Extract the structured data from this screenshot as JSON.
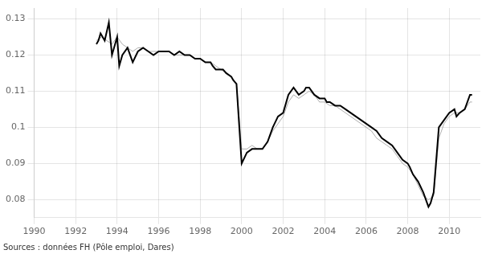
{
  "chart_data": {
    "type": "line",
    "annotations": [
      "Sources : données FH (Pôle emploi, Dares)"
    ],
    "xlim": [
      1990.0,
      2011.5
    ],
    "xticks": [
      1990,
      1992,
      1994,
      1996,
      1998,
      2000,
      2002,
      2004,
      2006,
      2008,
      2010
    ],
    "ylim": [
      0.075,
      0.133
    ],
    "yticks": [
      0.08,
      0.09,
      0.1,
      0.11,
      0.12,
      0.13
    ],
    "grid": true,
    "marker": "none",
    "series": [
      {
        "color": "#999999",
        "x": [
          1993.0,
          1993.25,
          1993.5,
          1993.75,
          1994.0,
          1994.25,
          1994.5,
          1994.75,
          1995.0,
          1995.25,
          1995.5,
          1995.75,
          1996.0,
          1996.25,
          1996.5,
          1996.75,
          1997.0,
          1997.25,
          1997.5,
          1997.75,
          1998.0,
          1998.25,
          1998.5,
          1998.75,
          1999.0,
          1999.25,
          1999.5,
          1999.75,
          2000.0,
          2000.25,
          2000.5,
          2000.75,
          2001.0,
          2001.25,
          2001.5,
          2001.75,
          2002.0,
          2002.25,
          2002.5,
          2002.75,
          2003.0,
          2003.25,
          2003.5,
          2003.75,
          2004.0,
          2004.25,
          2004.5,
          2004.75,
          2005.0,
          2005.25,
          2005.5,
          2005.75,
          2006.0,
          2006.25,
          2006.5,
          2006.75,
          2007.0,
          2007.25,
          2007.5,
          2007.75,
          2008.0,
          2008.25,
          2008.5,
          2008.75,
          2009.0,
          2009.25,
          2009.5,
          2009.75,
          2010.0,
          2010.25,
          2010.5,
          2010.75,
          2011.0,
          2011.1
        ],
        "values": [
          0.124,
          0.125,
          0.124,
          0.123,
          0.125,
          0.123,
          0.122,
          0.121,
          0.122,
          0.122,
          0.121,
          0.121,
          0.121,
          0.121,
          0.121,
          0.12,
          0.12,
          0.12,
          0.12,
          0.119,
          0.119,
          0.118,
          0.118,
          0.117,
          0.116,
          0.115,
          0.114,
          0.112,
          0.094,
          0.094,
          0.095,
          0.094,
          0.094,
          0.096,
          0.099,
          0.101,
          0.103,
          0.107,
          0.109,
          0.108,
          0.109,
          0.11,
          0.109,
          0.107,
          0.107,
          0.106,
          0.106,
          0.105,
          0.104,
          0.103,
          0.102,
          0.101,
          0.1,
          0.099,
          0.097,
          0.096,
          0.095,
          0.094,
          0.092,
          0.09,
          0.089,
          0.087,
          0.084,
          0.081,
          0.08,
          0.081,
          0.097,
          0.101,
          0.103,
          0.104,
          0.104,
          0.105,
          0.107,
          0.107
        ]
      },
      {
        "color": "#000000",
        "x": [
          1993.0,
          1993.1,
          1993.2,
          1993.4,
          1993.6,
          1993.75,
          1994.0,
          1994.1,
          1994.25,
          1994.5,
          1994.75,
          1995.0,
          1995.25,
          1995.5,
          1995.75,
          1996.0,
          1996.25,
          1996.5,
          1996.75,
          1997.0,
          1997.25,
          1997.5,
          1997.75,
          1998.0,
          1998.25,
          1998.5,
          1998.6,
          1998.75,
          1999.0,
          1999.1,
          1999.25,
          1999.5,
          1999.6,
          1999.75,
          2000.0,
          2000.25,
          2000.5,
          2000.75,
          2001.0,
          2001.25,
          2001.5,
          2001.75,
          2002.0,
          2002.25,
          2002.5,
          2002.75,
          2003.0,
          2003.1,
          2003.25,
          2003.5,
          2003.75,
          2004.0,
          2004.1,
          2004.25,
          2004.5,
          2004.75,
          2005.0,
          2005.25,
          2005.5,
          2005.75,
          2006.0,
          2006.25,
          2006.5,
          2006.75,
          2007.0,
          2007.25,
          2007.5,
          2007.75,
          2008.0,
          2008.1,
          2008.25,
          2008.5,
          2008.75,
          2009.0,
          2009.1,
          2009.25,
          2009.5,
          2009.75,
          2010.0,
          2010.25,
          2010.35,
          2010.5,
          2010.75,
          2011.0,
          2011.1
        ],
        "values": [
          0.123,
          0.124,
          0.126,
          0.124,
          0.129,
          0.12,
          0.125,
          0.117,
          0.12,
          0.122,
          0.118,
          0.121,
          0.122,
          0.121,
          0.12,
          0.121,
          0.121,
          0.121,
          0.12,
          0.121,
          0.12,
          0.12,
          0.119,
          0.119,
          0.118,
          0.118,
          0.117,
          0.116,
          0.116,
          0.116,
          0.115,
          0.114,
          0.113,
          0.112,
          0.09,
          0.093,
          0.094,
          0.094,
          0.094,
          0.096,
          0.1,
          0.103,
          0.104,
          0.109,
          0.111,
          0.109,
          0.11,
          0.111,
          0.111,
          0.109,
          0.108,
          0.108,
          0.107,
          0.107,
          0.106,
          0.106,
          0.105,
          0.104,
          0.103,
          0.102,
          0.101,
          0.1,
          0.099,
          0.097,
          0.096,
          0.095,
          0.093,
          0.091,
          0.09,
          0.089,
          0.087,
          0.085,
          0.082,
          0.078,
          0.079,
          0.082,
          0.1,
          0.102,
          0.104,
          0.105,
          0.103,
          0.104,
          0.105,
          0.109,
          0.109
        ]
      }
    ]
  }
}
